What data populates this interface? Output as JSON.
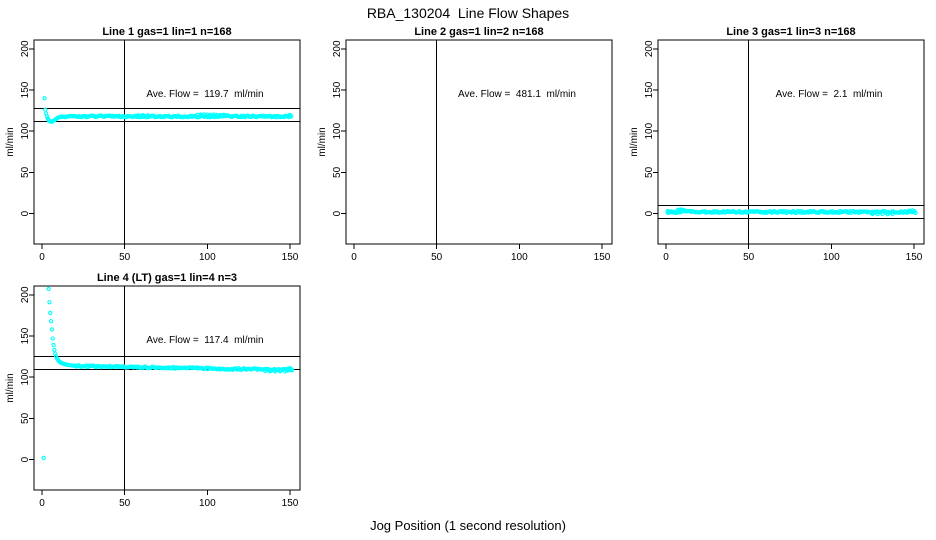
{
  "chart_data": {
    "type": "scatter",
    "layout": "4 panels: 3 on top row, 1 bottom-left; bottom-right empty",
    "main_title": "RBA_130204  Line Flow Shapes",
    "shared_x_label": "Jog Position (1 second resolution)",
    "marker": {
      "shape": "open-circle",
      "color": "#00FFFF"
    },
    "axis_color": "#000000",
    "background": "#FFFFFF",
    "x_ticks": [
      0,
      50,
      100,
      150
    ],
    "y_ticks": [
      0,
      50,
      100,
      150,
      200
    ],
    "xlim": [
      -5,
      156
    ],
    "ylim": [
      -37,
      211
    ],
    "legend": "none",
    "grid": "off",
    "panels": [
      {
        "title": "Line 1 gas=1 lin=1 n=168",
        "annotation": "Ave. Flow =  119.7  ml/min",
        "ave_flow_ml_min": 119.7,
        "ylabel": "ml/min",
        "vline_x": 50,
        "hlines": [
          127.7,
          111.7
        ],
        "points": [
          [
            1.5,
            140
          ],
          [
            2,
            126
          ],
          [
            2.5,
            121.5
          ],
          [
            3,
            118
          ],
          [
            3.5,
            115.5
          ],
          [
            4,
            113.5
          ],
          [
            4.5,
            112.3
          ],
          [
            5,
            111.8
          ],
          [
            5.5,
            111.5
          ],
          [
            6,
            111.6
          ],
          [
            6.5,
            111.9
          ],
          [
            7,
            112.5
          ],
          [
            7.5,
            113.2
          ],
          [
            8,
            114
          ],
          [
            8.5,
            114.8
          ],
          [
            9,
            115.5
          ],
          [
            9.5,
            116.2
          ],
          [
            10,
            116.7
          ],
          [
            11,
            117.3
          ],
          [
            12,
            117.7
          ]
        ],
        "band": {
          "x_from": 12,
          "x_to": 151,
          "step": 0.75,
          "y_start": 117.9,
          "y_end": 117.9,
          "jitter": 1.0
        },
        "extra_points": [
          [
            58,
            119.2
          ],
          [
            61,
            119.5
          ],
          [
            64,
            119.1
          ],
          [
            94,
            119.9
          ],
          [
            96,
            120.2
          ],
          [
            98,
            120.4
          ],
          [
            100,
            120.1
          ],
          [
            102,
            120.0
          ],
          [
            104,
            120.3
          ],
          [
            106,
            119.8
          ],
          [
            108,
            119.6
          ],
          [
            110,
            119.9
          ],
          [
            112,
            119.5
          ],
          [
            150,
            119.8
          ]
        ]
      },
      {
        "title": "Line 2 gas=1 lin=2 n=168",
        "annotation": "Ave. Flow =  481.1  ml/min",
        "ave_flow_ml_min": 481.1,
        "ylabel": "ml/min",
        "vline_x": 50,
        "hlines": [],
        "points": [],
        "band": null,
        "extra_points": []
      },
      {
        "title": "Line 3 gas=1 lin=3 n=168",
        "annotation": "Ave. Flow =  2.1  ml/min",
        "ave_flow_ml_min": 2.1,
        "ylabel": "ml/min",
        "vline_x": 50,
        "hlines": [
          10.1,
          -5.9
        ],
        "points": [
          [
            1,
            1.3
          ],
          [
            1.5,
            0.9
          ],
          [
            2,
            1.6
          ]
        ],
        "band": {
          "x_from": 1,
          "x_to": 151,
          "step": 0.75,
          "y_start": 2.0,
          "y_end": 2.0,
          "jitter": 1.1
        },
        "extra_points": [
          [
            7,
            4.3
          ],
          [
            8,
            4.6
          ],
          [
            9,
            4.9
          ],
          [
            10,
            4.5
          ],
          [
            11,
            4.1
          ],
          [
            125,
            -0.4
          ],
          [
            128,
            -0.6
          ],
          [
            131,
            -0.3
          ],
          [
            134,
            -0.7
          ],
          [
            137,
            -0.5
          ],
          [
            147,
            3.6
          ],
          [
            149,
            3.9
          ]
        ]
      },
      {
        "title": "Line 4 (LT) gas=1 lin=4 n=3",
        "annotation": "Ave. Flow =  117.4  ml/min",
        "ave_flow_ml_min": 117.4,
        "ylabel": "ml/min",
        "vline_x": 50,
        "hlines": [
          125.4,
          109.4
        ],
        "points": [
          [
            1,
            2
          ],
          [
            4,
            207
          ],
          [
            4.5,
            191
          ],
          [
            5,
            178
          ],
          [
            5.5,
            168
          ],
          [
            6,
            158
          ],
          [
            6.5,
            147
          ],
          [
            7,
            139
          ],
          [
            7.5,
            133
          ],
          [
            8,
            128.5
          ],
          [
            8.5,
            125.5
          ],
          [
            9,
            123
          ],
          [
            9.5,
            121.3
          ],
          [
            10,
            120
          ],
          [
            10.5,
            119
          ],
          [
            11,
            118.2
          ],
          [
            11.5,
            117.6
          ],
          [
            12,
            117.1
          ],
          [
            12.5,
            116.7
          ],
          [
            13,
            116.3
          ],
          [
            13.5,
            116
          ],
          [
            14,
            115.7
          ],
          [
            15,
            115.2
          ],
          [
            16,
            114.8
          ],
          [
            17,
            114.5
          ],
          [
            18,
            114.2
          ],
          [
            19,
            113.9
          ],
          [
            20,
            113.7
          ]
        ],
        "band": {
          "x_from": 20,
          "x_to": 151,
          "step": 0.75,
          "y_start": 113.6,
          "y_end": 108.8,
          "jitter": 1.0
        },
        "extra_points": [
          [
            135,
            107.4
          ],
          [
            138,
            107.2
          ],
          [
            141,
            107.0
          ],
          [
            144,
            107.3
          ],
          [
            147,
            106.9
          ],
          [
            149,
            110.6
          ],
          [
            150,
            110.9
          ],
          [
            150.5,
            110.3
          ]
        ]
      }
    ]
  }
}
